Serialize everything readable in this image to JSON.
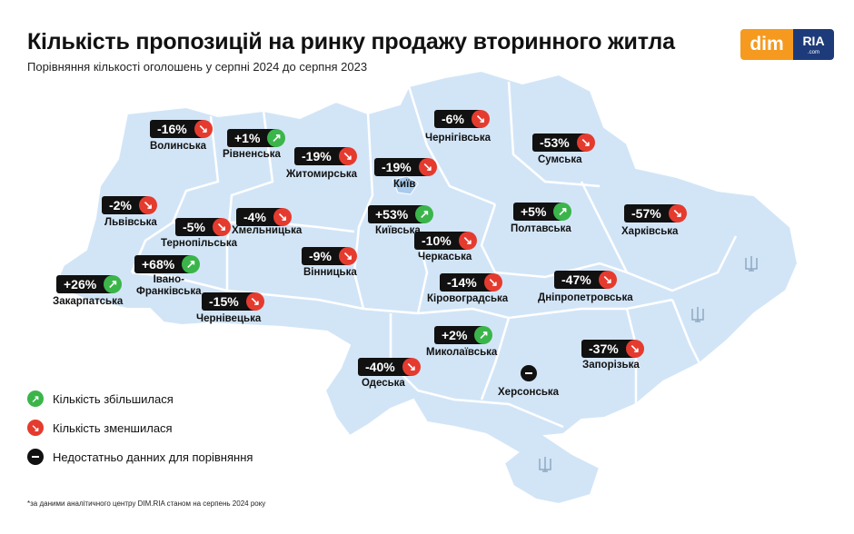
{
  "title": "Кількість пропозицій на ринку продажу вторинного житла",
  "subtitle": "Порівняння кількості оголошень у серпні 2024 до серпня 2023",
  "logo": {
    "left": "dim",
    "right": "RIA",
    "right_small": ".com"
  },
  "colors": {
    "map_fill": "#d2e5f7",
    "border": "#ffffff",
    "increase": "#3bb54a",
    "decrease": "#e53b2f",
    "badge": "#111111"
  },
  "regions": [
    {
      "id": "volynska",
      "name": "Волинська",
      "change": "-16%",
      "trend": "down"
    },
    {
      "id": "rivnenska",
      "name": "Рівненська",
      "change": "+1%",
      "trend": "up"
    },
    {
      "id": "zhytomyrska",
      "name": "Житомирська",
      "change": "-19%",
      "trend": "down"
    },
    {
      "id": "chernihivska",
      "name": "Чернігівська",
      "change": "-6%",
      "trend": "down"
    },
    {
      "id": "sumska",
      "name": "Сумська",
      "change": "-53%",
      "trend": "down"
    },
    {
      "id": "kyiv",
      "name": "Київ",
      "change": "-19%",
      "trend": "down"
    },
    {
      "id": "lvivska",
      "name": "Львівська",
      "change": "-2%",
      "trend": "down"
    },
    {
      "id": "ternopilska",
      "name": "Тернопільська",
      "change": "-5%",
      "trend": "down"
    },
    {
      "id": "khmelnytska",
      "name": "Хмельницька",
      "change": "-4%",
      "trend": "down"
    },
    {
      "id": "kyivska",
      "name": "Київська",
      "change": "+53%",
      "trend": "up"
    },
    {
      "id": "poltavska",
      "name": "Полтавська",
      "change": "+5%",
      "trend": "up"
    },
    {
      "id": "kharkivska",
      "name": "Харківська",
      "change": "-57%",
      "trend": "down"
    },
    {
      "id": "cherkaska",
      "name": "Черкаська",
      "change": "-10%",
      "trend": "down"
    },
    {
      "id": "vinnytska",
      "name": "Вінницька",
      "change": "-9%",
      "trend": "down"
    },
    {
      "id": "ivanofrankivska",
      "name": "Івано-\nФранківська",
      "change": "+68%",
      "trend": "up"
    },
    {
      "id": "zakarpatska",
      "name": "Закарпатська",
      "change": "+26%",
      "trend": "up"
    },
    {
      "id": "kirovohradska",
      "name": "Кіровоградська",
      "change": "-14%",
      "trend": "down"
    },
    {
      "id": "dnipropetrovska",
      "name": "Дніпропетровська",
      "change": "-47%",
      "trend": "down"
    },
    {
      "id": "chernivetska",
      "name": "Чернівецька",
      "change": "-15%",
      "trend": "down"
    },
    {
      "id": "mykolaivska",
      "name": "Миколаївська",
      "change": "+2%",
      "trend": "up"
    },
    {
      "id": "zaporizka",
      "name": "Запорізька",
      "change": "-37%",
      "trend": "down"
    },
    {
      "id": "odeska",
      "name": "Одеська",
      "change": "-40%",
      "trend": "down"
    },
    {
      "id": "khersonska",
      "name": "Херсонська",
      "change": "",
      "trend": "none"
    }
  ],
  "legend": {
    "increase": "Кількість збільшилася",
    "decrease": "Кількість зменшилася",
    "nodata": "Недостатньо данних для порівняння"
  },
  "footnote": "*за даними аналітичного центру DIM.RIA станом на серпень 2024 року"
}
